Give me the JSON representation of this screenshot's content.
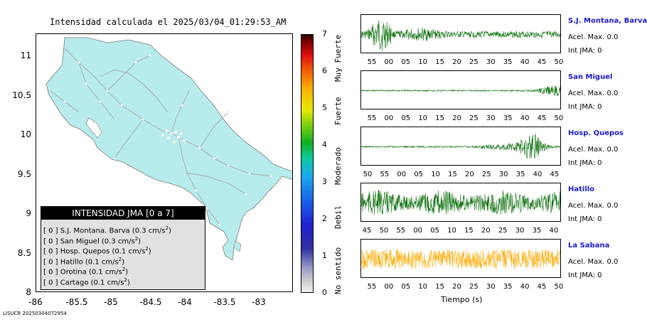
{
  "map": {
    "title": "Intensidad calculada el 2025/03/04_01:29:53_AM",
    "y_ticks": [
      "11",
      "10.5",
      "10",
      "9.5",
      "9",
      "8.5",
      "8"
    ],
    "x_ticks": [
      "-86",
      "-85.5",
      "-85",
      "-84.5",
      "-84",
      "-83.5",
      "-83"
    ],
    "land_color": "#b8ecec",
    "road_color": "#a8a8a8"
  },
  "legend": {
    "title": "INTENSIDAD JMA [0 a 7]",
    "rows": [
      {
        "level": "[ 0 ]",
        "text": "S.J. Montana. Barva (0.3 cm/s",
        "sup": "2",
        "end": ")"
      },
      {
        "level": "[ 0 ]",
        "text": "San Miguel (0.3 cm/s",
        "sup": "2",
        "end": ")"
      },
      {
        "level": "[ 0 ]",
        "text": "Hosp. Quepos (0.1 cm/s",
        "sup": "2",
        "end": ")"
      },
      {
        "level": "[ 0 ]",
        "text": "Hatillo (0.1 cm/s",
        "sup": "2",
        "end": ")"
      },
      {
        "level": "[ 0 ]",
        "text": "Orotina (0.1 cm/s",
        "sup": "2",
        "end": ")"
      },
      {
        "level": "[ 0 ]",
        "text": "Cartago (0.1 cm/s",
        "sup": "2",
        "end": ")"
      }
    ]
  },
  "colorbar": {
    "ticks": [
      "7",
      "6",
      "5",
      "4",
      "3",
      "2",
      "1",
      "0"
    ],
    "names": [
      "Muy Fuerte",
      "Fuerte",
      "Moderado",
      "Debil",
      "No sentido"
    ]
  },
  "stations": [
    {
      "name": "S.J. Montana, Barva",
      "acel": "Acel. Max. 0.0",
      "int": "Int JMA: 0",
      "color": "#0a6e0a",
      "ticks": [
        "55",
        "00",
        "05",
        "10",
        "15",
        "20",
        "25",
        "30",
        "35",
        "40",
        "45",
        "50"
      ],
      "shift": 0
    },
    {
      "name": "San Miguel",
      "acel": "Acel. Max. 0.0",
      "int": "Int JMA: 0",
      "color": "#0a6e0a",
      "ticks": [
        "55",
        "00",
        "05",
        "10",
        "15",
        "20",
        "25",
        "30",
        "35",
        "40",
        "45",
        "50"
      ],
      "shift": 0
    },
    {
      "name": "Hosp. Quepos",
      "acel": "Acel. Max. 0.0",
      "int": "Int JMA: 0",
      "color": "#0a6e0a",
      "ticks": [
        "50",
        "55",
        "00",
        "05",
        "10",
        "15",
        "20",
        "25",
        "30",
        "35",
        "40",
        "45"
      ],
      "shift": -6
    },
    {
      "name": "Hatillo",
      "acel": "Acel. Max. 0.0",
      "int": "Int JMA: 0",
      "color": "#0a6e0a",
      "ticks": [
        "45",
        "50",
        "55",
        "00",
        "05",
        "10",
        "15",
        "20",
        "25",
        "30",
        "35",
        "40"
      ],
      "shift": -7
    },
    {
      "name": "La Sabana",
      "acel": "Acel. Max. 0.0",
      "int": "Int JMA: 0",
      "color": "#ffaa00",
      "ticks": [
        "55",
        "00",
        "05",
        "10",
        "15",
        "20",
        "25",
        "30",
        "35",
        "40",
        "45",
        "50"
      ],
      "shift": 0
    }
  ],
  "xaxis_label": "Tiempo (s)",
  "footer": "LISUCR 20250304072954"
}
